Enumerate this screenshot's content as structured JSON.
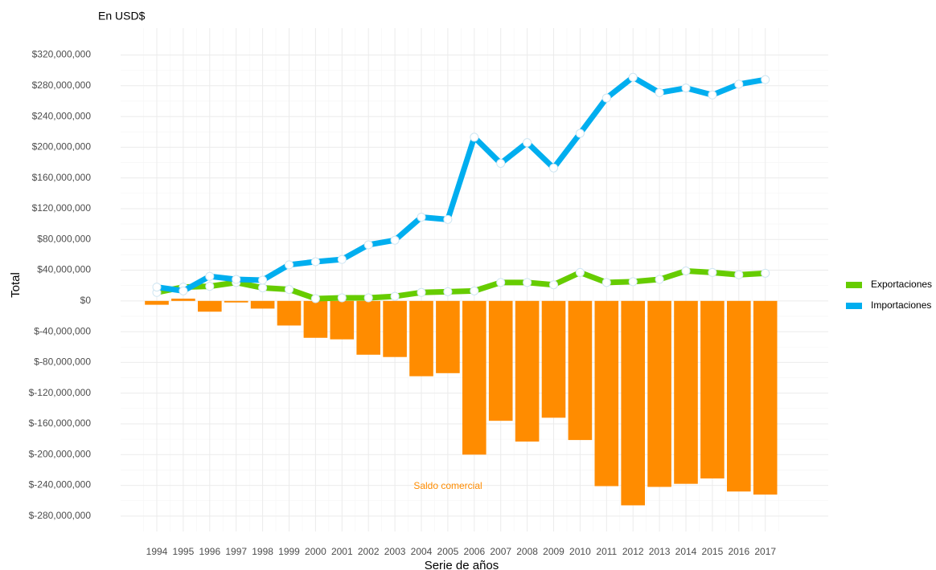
{
  "chart_data": {
    "type": "combo",
    "title": "En USD$",
    "y_label": "Total",
    "x_label": "Serie de años",
    "annotation": "Saldo comercial",
    "categories": [
      "1994",
      "1995",
      "1996",
      "1997",
      "1998",
      "1999",
      "2000",
      "2001",
      "2002",
      "2003",
      "2004",
      "2005",
      "2006",
      "2007",
      "2008",
      "2009",
      "2010",
      "2011",
      "2012",
      "2013",
      "2014",
      "2015",
      "2016",
      "2017"
    ],
    "series": [
      {
        "type": "bar",
        "color": "#ff8c00",
        "values": [
          -5000000,
          3000000,
          -14000000,
          -2000000,
          -10000000,
          -32000000,
          -48000000,
          -50000000,
          -70000000,
          -73000000,
          -98000000,
          -94000000,
          -200000000,
          -156000000,
          -183000000,
          -152000000,
          -181000000,
          -241000000,
          -266000000,
          -242000000,
          -238000000,
          -231000000,
          -248000000,
          -252000000
        ]
      },
      {
        "type": "line",
        "name": "Exportaciones",
        "color": "#66cc00",
        "values": [
          11000000,
          18000000,
          19000000,
          24000000,
          17000000,
          15000000,
          3000000,
          4000000,
          4000000,
          6000000,
          11000000,
          12000000,
          13000000,
          24000000,
          24000000,
          21000000,
          37000000,
          24000000,
          25000000,
          28000000,
          39000000,
          37000000,
          34000000,
          36000000
        ]
      },
      {
        "type": "line",
        "name": "Importaciones",
        "color": "#00aeef",
        "values": [
          18000000,
          13000000,
          32000000,
          28000000,
          27000000,
          47000000,
          51000000,
          54000000,
          73000000,
          79000000,
          109000000,
          106000000,
          213000000,
          179000000,
          206000000,
          173000000,
          218000000,
          264000000,
          291000000,
          271000000,
          277000000,
          268000000,
          282000000,
          288000000
        ]
      }
    ],
    "ylim": [
      -300000000,
      355000000
    ],
    "yticks": [
      {
        "value": -280000000,
        "label": "$-280,000,000"
      },
      {
        "value": -240000000,
        "label": "$-240,000,000"
      },
      {
        "value": -200000000,
        "label": "$-200,000,000"
      },
      {
        "value": -160000000,
        "label": "$-160,000,000"
      },
      {
        "value": -120000000,
        "label": "$-120,000,000"
      },
      {
        "value": -80000000,
        "label": "$-80,000,000"
      },
      {
        "value": -40000000,
        "label": "$-40,000,000"
      },
      {
        "value": 0,
        "label": "$0"
      },
      {
        "value": 40000000,
        "label": "$40,000,000"
      },
      {
        "value": 80000000,
        "label": "$80,000,000"
      },
      {
        "value": 120000000,
        "label": "$120,000,000"
      },
      {
        "value": 160000000,
        "label": "$160,000,000"
      },
      {
        "value": 200000000,
        "label": "$200,000,000"
      },
      {
        "value": 240000000,
        "label": "$240,000,000"
      },
      {
        "value": 280000000,
        "label": "$280,000,000"
      },
      {
        "value": 320000000,
        "label": "$320,000,000"
      }
    ],
    "grid": true,
    "legend": "right"
  }
}
